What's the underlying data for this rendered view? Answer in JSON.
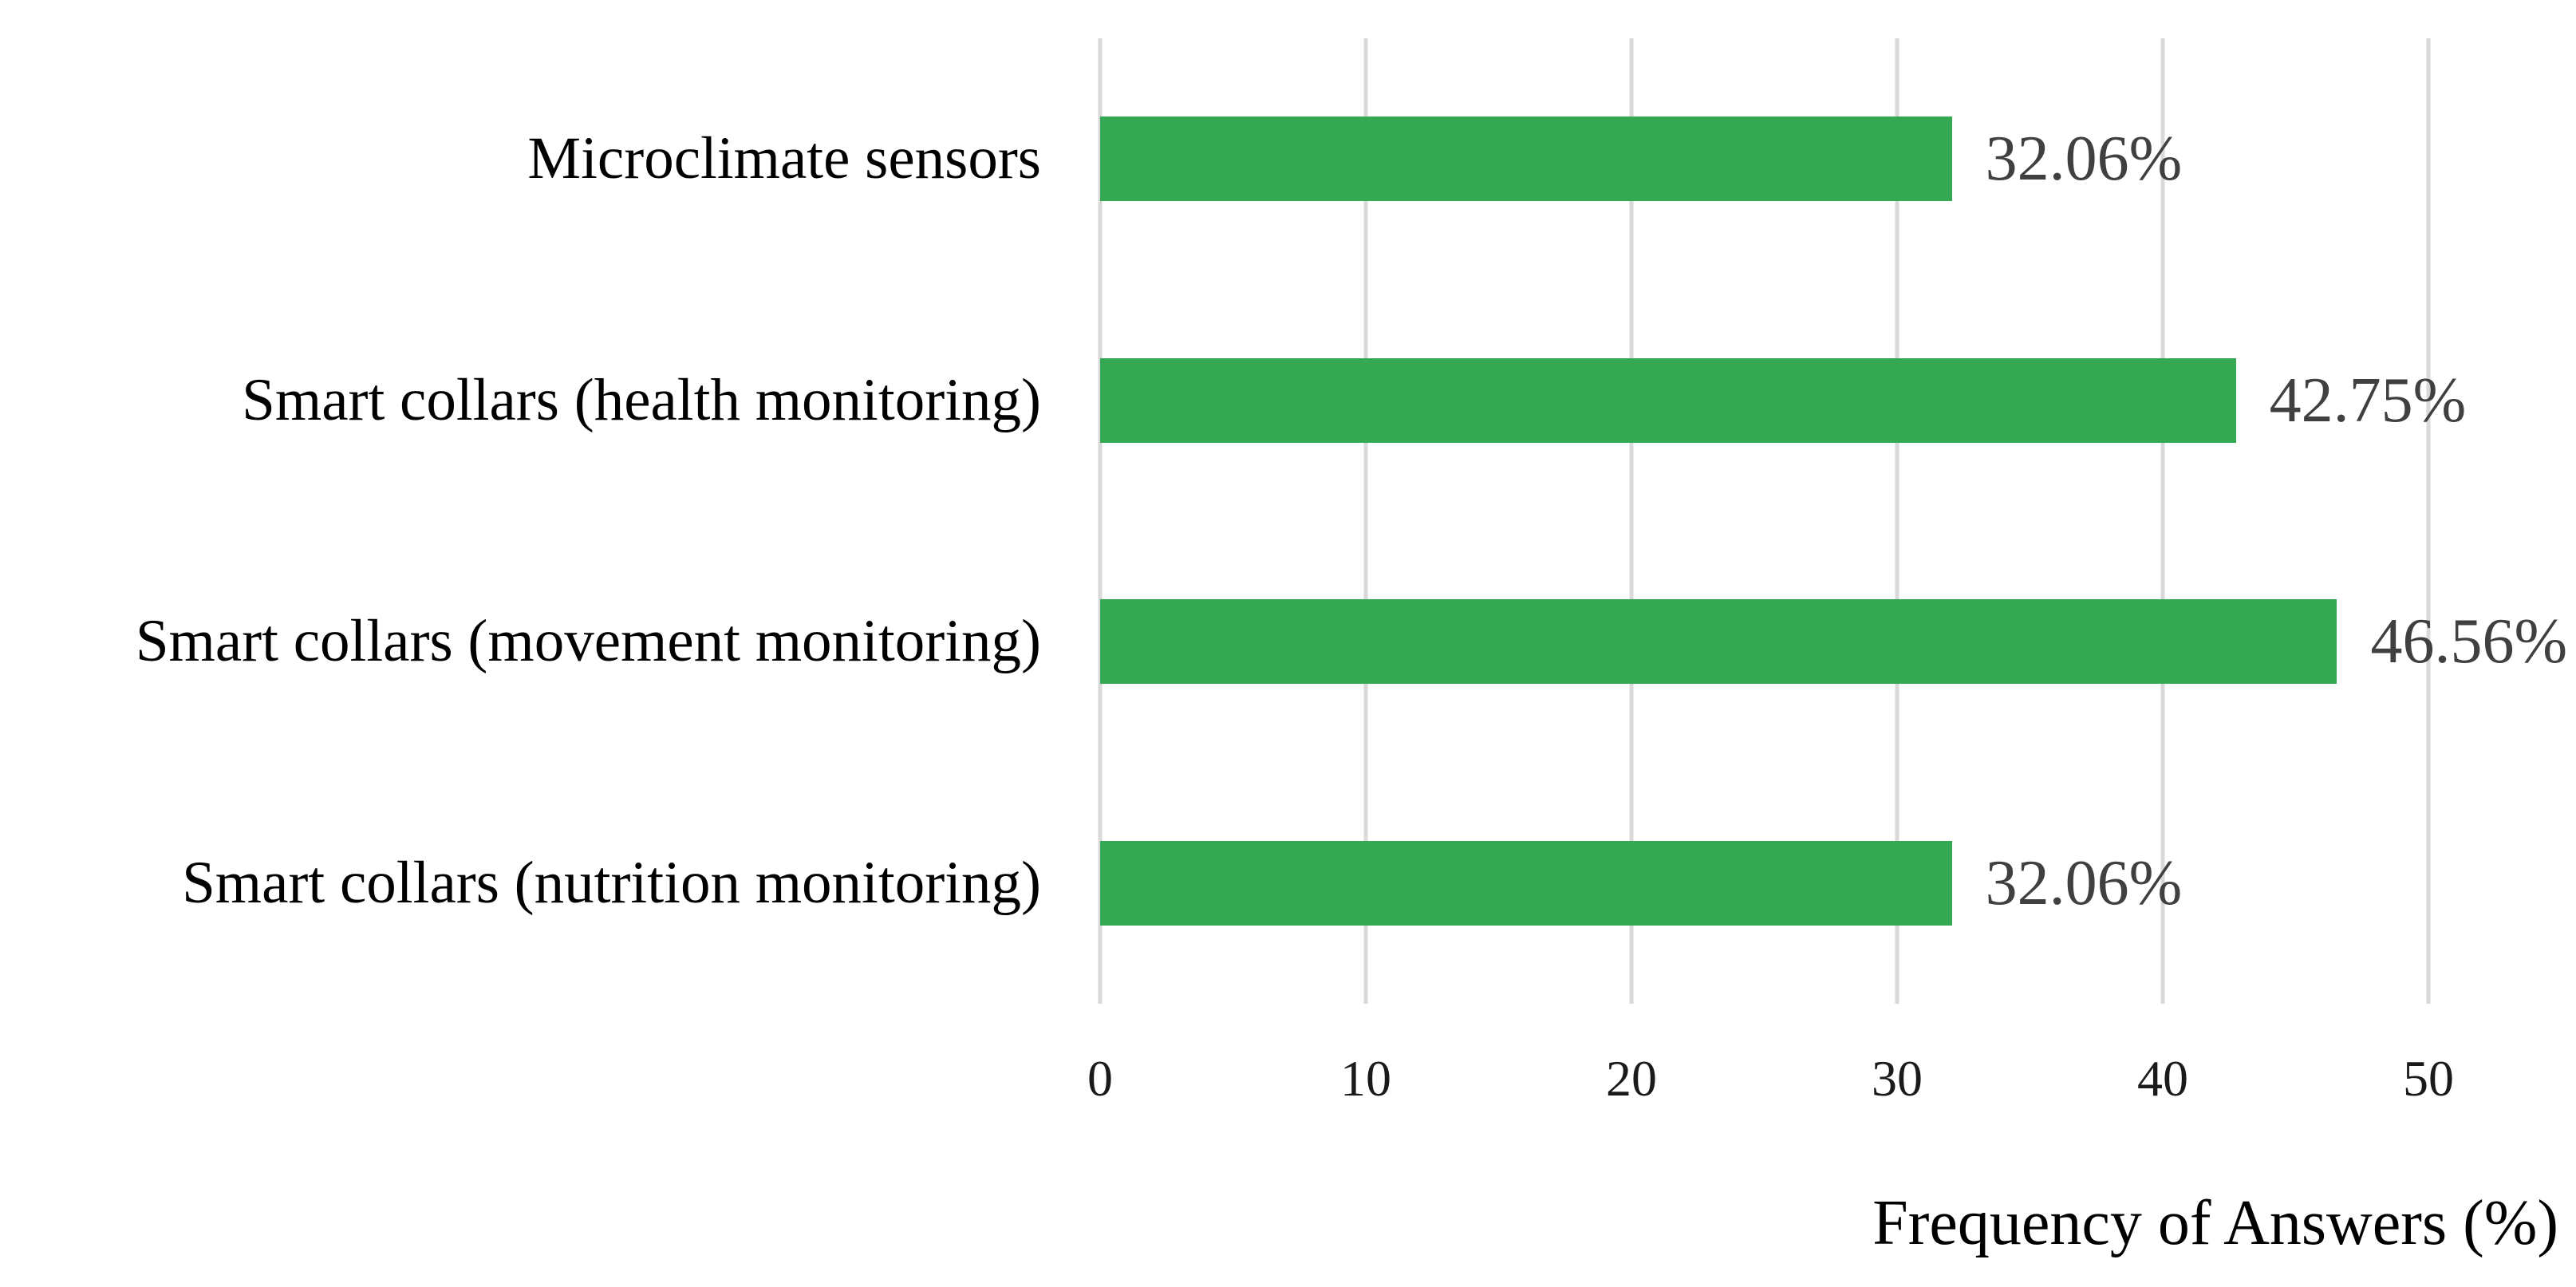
{
  "figure": {
    "background": "#ffffff"
  },
  "chart_data": {
    "type": "bar",
    "orientation": "horizontal",
    "title": "",
    "categories": [
      "Microclimate sensors",
      "Smart collars (health monitoring)",
      "Smart collars (movement monitoring)",
      "Smart collars (nutrition monitoring)"
    ],
    "values": [
      32.06,
      42.75,
      46.56,
      32.06
    ],
    "value_labels": [
      "32.06%",
      "42.75%",
      "46.56%",
      "32.06%"
    ],
    "xlabel": "Frequency of Answers (%)",
    "ylabel": "",
    "xlim": [
      0,
      50
    ],
    "x_ticks": [
      0,
      10,
      20,
      30,
      40,
      50
    ],
    "x_tick_labels": [
      "0",
      "10",
      "20",
      "30",
      "40",
      "50"
    ],
    "grid": "vertical-only",
    "legend": "none",
    "colors": {
      "bar": "#35a853",
      "gridline": "#d9d9d9",
      "value_label": "#404040",
      "tick_label": "#1a1a1a",
      "category_label": "#000000"
    }
  }
}
